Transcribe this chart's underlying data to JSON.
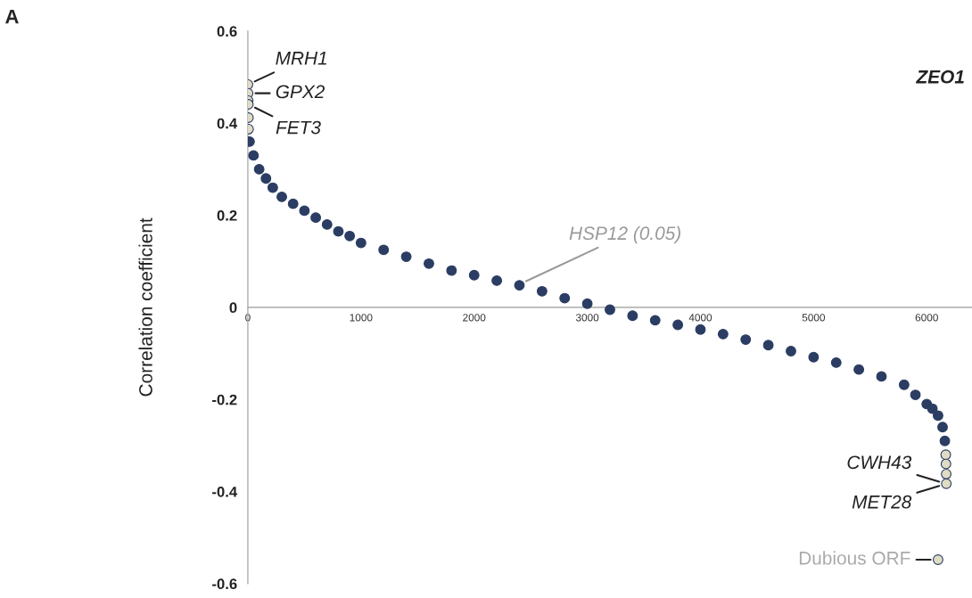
{
  "chart_data": {
    "type": "scatter",
    "title": "ZEO1",
    "ylabel": "Correlation coefficient",
    "xlim": [
      0,
      6400
    ],
    "xticks": [
      0,
      1000,
      2000,
      3000,
      4000,
      5000,
      6000
    ],
    "ylim": [
      -0.6,
      0.6
    ],
    "yticks": [
      {
        "value": -0.6,
        "label": "-0.6"
      },
      {
        "value": -0.4,
        "label": "-0.4"
      },
      {
        "value": -0.2,
        "label": "-0.2"
      },
      0,
      0.2,
      0.4,
      0.6
    ],
    "grid": false,
    "legend": false,
    "marker": "circle",
    "series": [
      {
        "color": "#2b3d63",
        "x": [
          15,
          50,
          100,
          160,
          220,
          300,
          400,
          500,
          600,
          700,
          800,
          900,
          1000,
          1200,
          1400,
          1600,
          1800,
          2000,
          2200,
          2400,
          2600,
          2800,
          3000,
          3200,
          3400,
          3600,
          3800,
          4000,
          4200,
          4400,
          4600,
          4800,
          5000,
          5200,
          5400,
          5600,
          5800,
          5900,
          6000,
          6050,
          6100,
          6140,
          6160
        ],
        "values": [
          0.36,
          0.33,
          0.3,
          0.28,
          0.26,
          0.24,
          0.225,
          0.21,
          0.195,
          0.18,
          0.165,
          0.155,
          0.14,
          0.125,
          0.11,
          0.095,
          0.08,
          0.07,
          0.058,
          0.048,
          0.035,
          0.02,
          0.008,
          -0.005,
          -0.018,
          -0.028,
          -0.038,
          -0.048,
          -0.058,
          -0.07,
          -0.082,
          -0.095,
          -0.108,
          -0.12,
          -0.135,
          -0.15,
          -0.168,
          -0.19,
          -0.21,
          -0.22,
          -0.235,
          -0.26,
          -0.29
        ]
      },
      {
        "color": "#e0dcc4",
        "x": [
          1,
          2,
          3,
          4,
          5,
          6,
          6168,
          6170,
          6172,
          6173,
          6100
        ],
        "values": [
          0.484,
          0.465,
          0.449,
          0.441,
          0.412,
          0.387,
          -0.32,
          -0.34,
          -0.362,
          -0.383,
          -0.548
        ]
      }
    ],
    "annotations": [
      "A",
      {
        "text": "MRH1",
        "x": 1,
        "y": 0.484
      },
      {
        "text": "GPX2",
        "x": 2,
        "y": 0.465
      },
      {
        "text": "FET3",
        "x": 4,
        "y": 0.441
      },
      {
        "text": "HSP12 (0.05)",
        "x": 2400,
        "y": 0.05
      },
      {
        "text": "CWH43",
        "x": 6173,
        "y": -0.383
      },
      {
        "text": "MET28",
        "x": 6173,
        "y": -0.383
      },
      {
        "text": "Dubious ORF",
        "x": 6100,
        "y": -0.548
      }
    ]
  }
}
